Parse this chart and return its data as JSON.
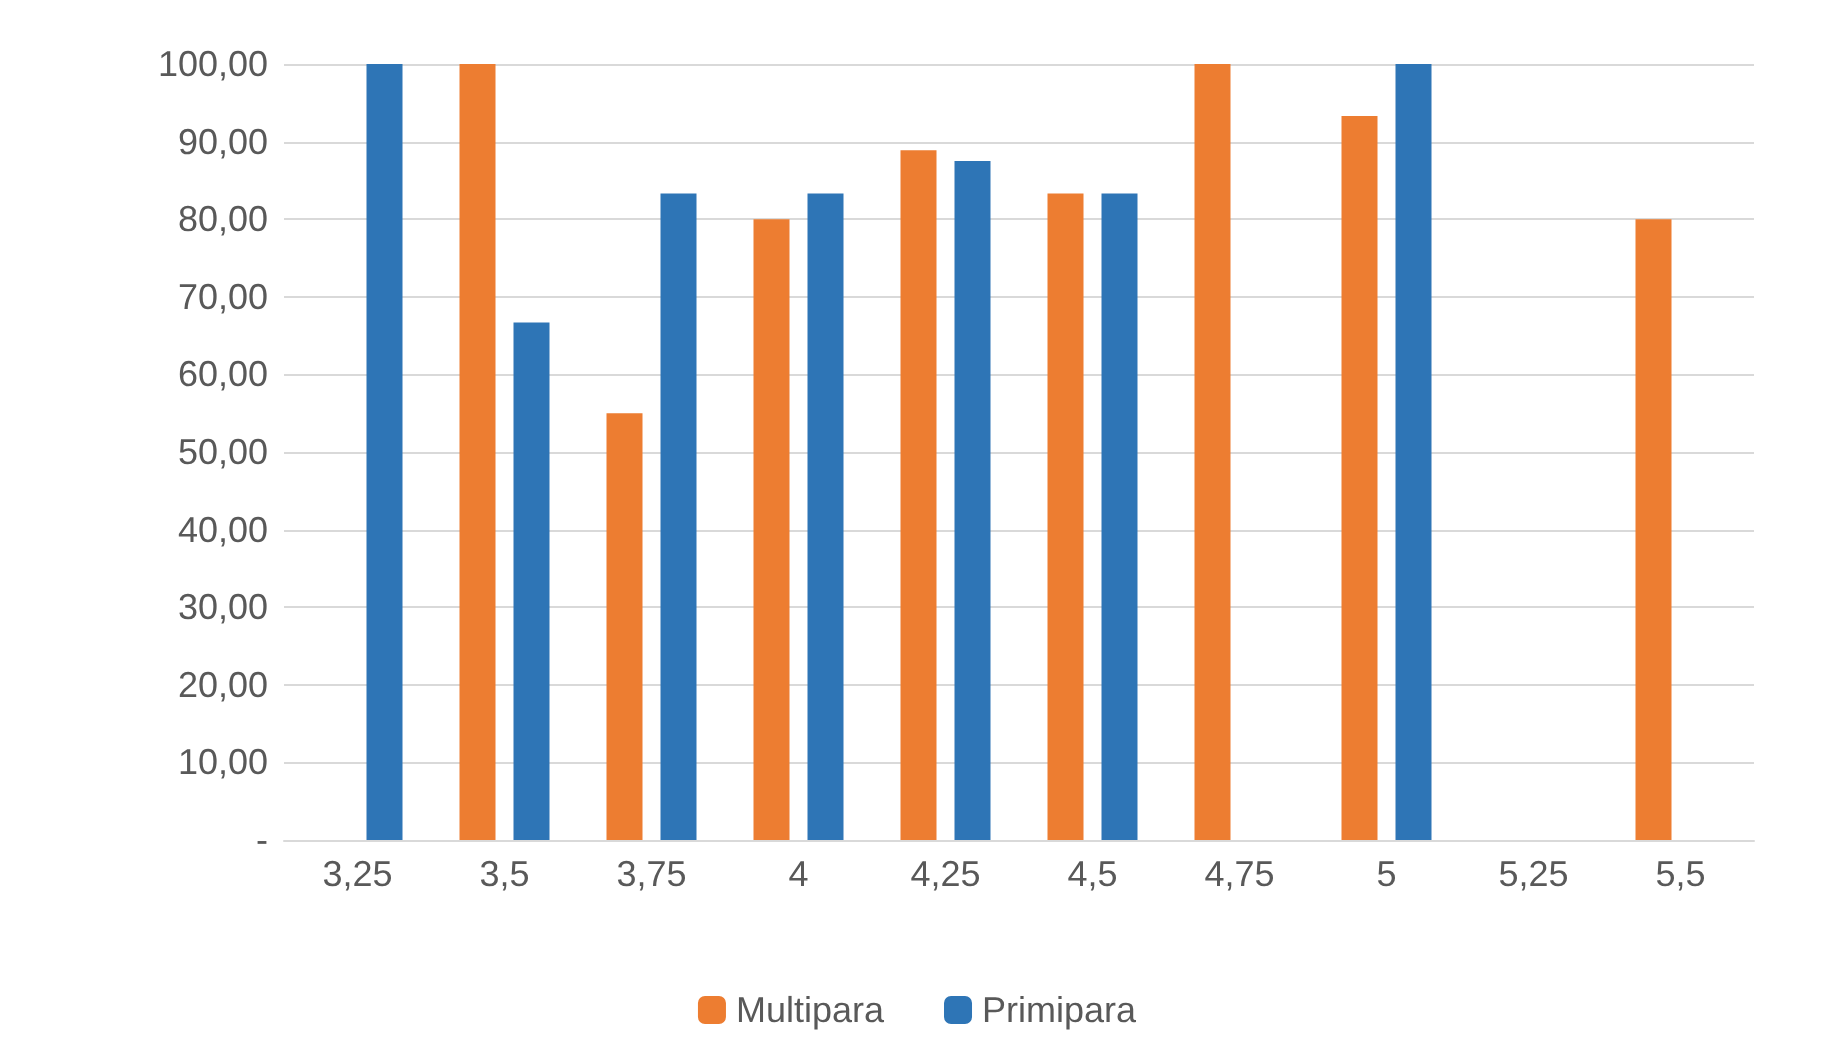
{
  "chart_data": {
    "type": "bar",
    "categories": [
      "3,25",
      "3,5",
      "3,75",
      "4",
      "4,25",
      "4,5",
      "4,75",
      "5",
      "5,25",
      "5,5"
    ],
    "series": [
      {
        "name": "Multipara",
        "color": "#ed7d31",
        "values": [
          null,
          100,
          55,
          80,
          88.9,
          83.3,
          100,
          93.3,
          null,
          80
        ]
      },
      {
        "name": "Primipara",
        "color": "#2e75b6",
        "values": [
          100,
          66.7,
          83.3,
          83.3,
          87.5,
          83.3,
          null,
          100,
          null,
          null
        ]
      }
    ],
    "ylim": [
      0,
      100
    ],
    "yticks": [
      {
        "value": 0,
        "label": "-"
      },
      {
        "value": 10,
        "label": "10,00"
      },
      {
        "value": 20,
        "label": "20,00"
      },
      {
        "value": 30,
        "label": "30,00"
      },
      {
        "value": 40,
        "label": "40,00"
      },
      {
        "value": 50,
        "label": "50,00"
      },
      {
        "value": 60,
        "label": "60,00"
      },
      {
        "value": 70,
        "label": "70,00"
      },
      {
        "value": 80,
        "label": "80,00"
      },
      {
        "value": 90,
        "label": "90,00"
      },
      {
        "value": 100,
        "label": "100,00"
      }
    ],
    "grid": "y",
    "legend": "bottom"
  }
}
